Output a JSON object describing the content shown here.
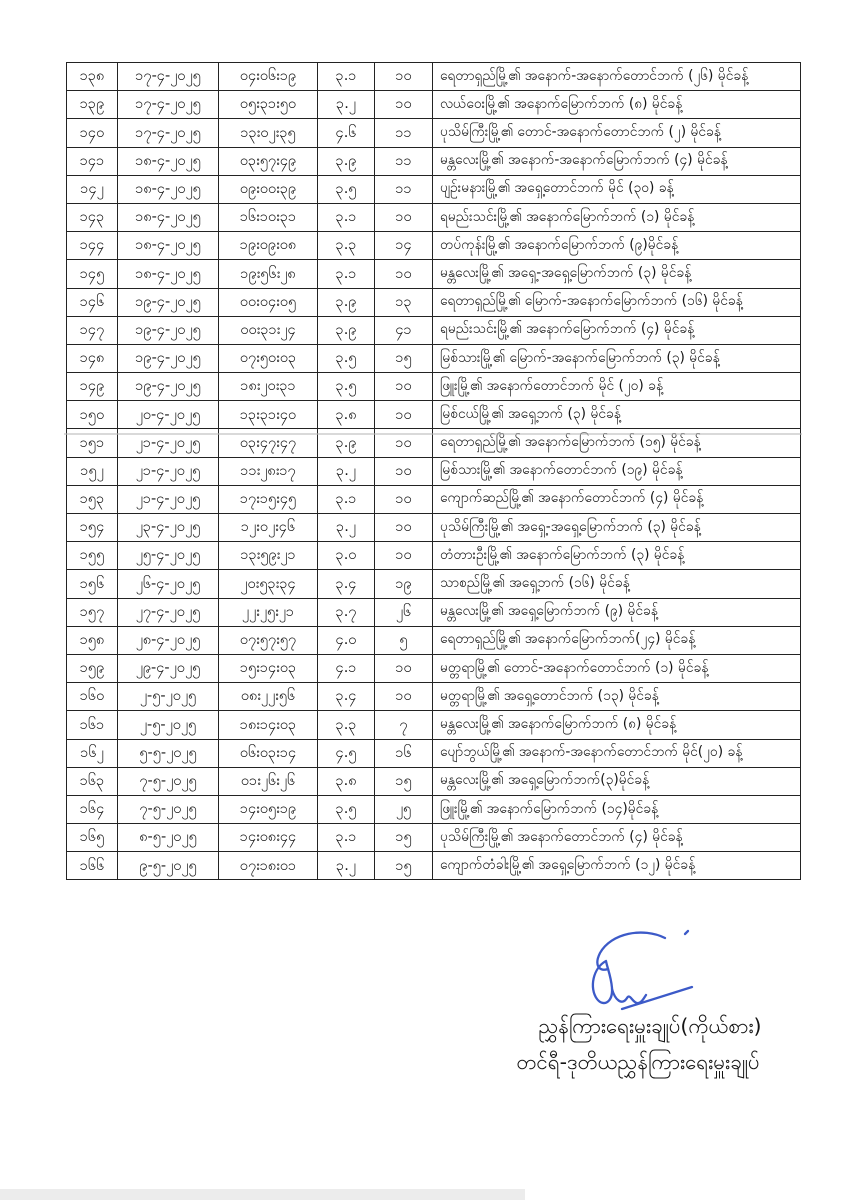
{
  "colors": {
    "page_background": "#ffffff",
    "text_ink": "#151515",
    "table_border": "#232323",
    "signature_ink": "#3c5ac8"
  },
  "table": {
    "rows": [
      {
        "no": "၁၃၈",
        "date": "၁၇-၄-၂၀၂၅",
        "time": "၀၄း၀၆း၁၉",
        "magnitude": "၃.၁",
        "depth": "၁၀",
        "location": "ရေတာရှည်မြို့၏ အနောက်-အနောက်တောင်ဘက် (၂၆) မိုင်ခန့်"
      },
      {
        "no": "၁၃၉",
        "date": "၁၇-၄-၂၀၂၅",
        "time": "၀၅း၃၁း၅၀",
        "magnitude": "၃.၂",
        "depth": "၁၀",
        "location": "လယ်ဝေးမြို့၏ အနောက်မြောက်ဘက် (၈) မိုင်ခန့်"
      },
      {
        "no": "၁၄၀",
        "date": "၁၇-၄-၂၀၂၅",
        "time": "၁၃း၀၂း၃၅",
        "magnitude": "၄.၆",
        "depth": "၁၁",
        "location": "ပုသိမ်ကြီးမြို့၏ တောင်-အနောက်တောင်ဘက် (၂) မိုင်ခန့်"
      },
      {
        "no": "၁၄၁",
        "date": "၁၈-၄-၂၀၂၅",
        "time": "၀၃း၅၇း၄၉",
        "magnitude": "၃.၉",
        "depth": "၁၁",
        "location": "မန္တလေးမြို့၏ အနောက်-အနောက်မြောက်ဘက် (၄) မိုင်ခန့်"
      },
      {
        "no": "၁၄၂",
        "date": "၁၈-၄-၂၀၂၅",
        "time": "၀၉း၀၀း၃၉",
        "magnitude": "၃.၅",
        "depth": "၁၁",
        "location": "ပျဉ်းမနားမြို့၏ အရှေ့တောင်ဘက် မိုင် (၃၀) ခန့်"
      },
      {
        "no": "၁၄၃",
        "date": "၁၈-၄-၂၀၂၅",
        "time": "၁၆း၁၀း၃၁",
        "magnitude": "၃.၁",
        "depth": "၁၀",
        "location": "ရမည်းသင်းမြို့၏ အနောက်မြောက်ဘက် (၁) မိုင်ခန့်"
      },
      {
        "no": "၁၄၄",
        "date": "၁၈-၄-၂၀၂၅",
        "time": "၁၉း၀၉း၀၈",
        "magnitude": "၃.၃",
        "depth": "၁၄",
        "location": "တပ်ကုန်းမြို့၏ အနောက်မြောက်ဘက် (၉)မိုင်ခန့်"
      },
      {
        "no": "၁၄၅",
        "date": "၁၈-၄-၂၀၂၅",
        "time": "၁၉း၅၆း၂၈",
        "magnitude": "၃.၁",
        "depth": "၁၀",
        "location": "မန္တလေးမြို့၏ အရှေ့-အရှေ့မြောက်ဘက် (၃) မိုင်ခန့်"
      },
      {
        "no": "၁၄၆",
        "date": "၁၉-၄-၂၀၂၅",
        "time": "၀၀း၀၄း၀၅",
        "magnitude": "၃.၉",
        "depth": "၁၃",
        "location": "ရေတာရှည်မြို့၏ မြောက်-အနောက်မြောက်ဘက် (၁၆) မိုင်ခန့်"
      },
      {
        "no": "၁၄၇",
        "date": "၁၉-၄-၂၀၂၅",
        "time": "၀၀း၃၁း၂၄",
        "magnitude": "၃.၉",
        "depth": "၄၁",
        "location": "ရမည်းသင်းမြို့၏ အနောက်မြောက်ဘက် (၄) မိုင်ခန့်"
      },
      {
        "no": "၁၄၈",
        "date": "၁၉-၄-၂၀၂၅",
        "time": "၀၇း၅၀း၀၃",
        "magnitude": "၃.၅",
        "depth": "၁၅",
        "location": "မြစ်သားမြို့၏ မြောက်-အနောက်မြောက်ဘက် (၃) မိုင်ခန့်"
      },
      {
        "no": "၁၄၉",
        "date": "၁၉-၄-၂၀၂၅",
        "time": "၁၈း၂၀း၃၁",
        "magnitude": "၃.၅",
        "depth": "၁၀",
        "location": "ဖြူးမြို့၏ အနောက်တောင်ဘက် မိုင် (၂၀) ခန့်"
      },
      {
        "no": "၁၅၀",
        "date": "၂၀-၄-၂၀၂၅",
        "time": "၁၃း၃၁း၄၀",
        "magnitude": "၃.၈",
        "depth": "၁၀",
        "location": "မြစ်ငယ်မြို့၏ အရှေ့ဘက် (၃) မိုင်ခန့်"
      },
      {
        "no": "၁၅၁",
        "date": "၂၁-၄-၂၀၂၅",
        "time": "၀၃း၄၇း၄၇",
        "magnitude": "၃.၉",
        "depth": "၁၀",
        "location": "ရေတာရှည်မြို့၏ အနောက်မြောက်ဘက် (၁၅) မိုင်ခန့်"
      },
      {
        "no": "၁၅၂",
        "date": "၂၁-၄-၂၀၂၅",
        "time": "၁၁း၂၈း၁၇",
        "magnitude": "၃.၂",
        "depth": "၁၀",
        "location": "မြစ်သားမြို့၏ အနောက်တောင်ဘက် (၁၉) မိုင်ခန့်"
      },
      {
        "no": "၁၅၃",
        "date": "၂၁-၄-၂၀၂၅",
        "time": "၁၇း၁၅း၄၅",
        "magnitude": "၃.၁",
        "depth": "၁၀",
        "location": "ကျောက်ဆည်မြို့၏ အနောက်တောင်ဘက် (၄) မိုင်ခန့်"
      },
      {
        "no": "၁၅၄",
        "date": "၂၃-၄-၂၀၂၅",
        "time": "၁၂း၀၂း၄၆",
        "magnitude": "၃.၂",
        "depth": "၁၀",
        "location": "ပုသိမ်ကြီးမြို့၏ အရှေ့-အရှေ့မြောက်ဘက် (၃) မိုင်ခန့်"
      },
      {
        "no": "၁၅၅",
        "date": "၂၅-၄-၂၀၂၅",
        "time": "၁၃း၅၉း၂၁",
        "magnitude": "၃.၀",
        "depth": "၁၀",
        "location": "တံတားဦးမြို့၏ အနောက်မြောက်ဘက် (၃) မိုင်ခန့်"
      },
      {
        "no": "၁၅၆",
        "date": "၂၆-၄-၂၀၂၅",
        "time": "၂၀း၅၃း၃၄",
        "magnitude": "၃.၄",
        "depth": "၁၉",
        "location": "သာစည်မြို့၏ အရှေ့ဘက် (၁၆) မိုင်ခန့်"
      },
      {
        "no": "၁၅၇",
        "date": "၂၇-၄-၂၀၂၅",
        "time": "၂၂း၂၅း၂၁",
        "magnitude": "၃.၇",
        "depth": "၂၆",
        "location": "မန္တလေးမြို့၏ အရှေ့မြောက်ဘက် (၉) မိုင်ခန့်"
      },
      {
        "no": "၁၅၈",
        "date": "၂၈-၄-၂၀၂၅",
        "time": "၀၇း၅၇း၅၇",
        "magnitude": "၄.၀",
        "depth": "၅",
        "location": "ရေတာရှည်မြို့၏ အနောက်မြောက်ဘက်(၂၄) မိုင်ခန့်"
      },
      {
        "no": "၁၅၉",
        "date": "၂၉-၄-၂၀၂၅",
        "time": "၁၅း၁၄း၀၃",
        "magnitude": "၄.၁",
        "depth": "၁၀",
        "location": "မတ္တရာမြို့၏ တောင်-အနောက်တောင်ဘက် (၁) မိုင်ခန့်"
      },
      {
        "no": "၁၆၀",
        "date": "၂-၅-၂၀၂၅",
        "time": "၀၈း၂၂း၅၆",
        "magnitude": "၃.၄",
        "depth": "၁၀",
        "location": "မတ္တရာမြို့၏ အရှေ့တောင်ဘက် (၁၃) မိုင်ခန့်"
      },
      {
        "no": "၁၆၁",
        "date": "၂-၅-၂၀၂၅",
        "time": "၁၈း၁၄း၀၃",
        "magnitude": "၃.၃",
        "depth": "၇",
        "location": "မန္တလေးမြို့၏ အနောက်မြောက်ဘက် (၈) မိုင်ခန့်"
      },
      {
        "no": "၁၆၂",
        "date": "၅-၅-၂၀၂၅",
        "time": "၀၆း၀၃း၁၄",
        "magnitude": "၄.၅",
        "depth": "၁၆",
        "location": "ပျော်ဘွယ်မြို့၏ အနောက်-အနောက်တောင်ဘက် မိုင်(၂၀) ခန့်"
      },
      {
        "no": "၁၆၃",
        "date": "၇-၅-၂၀၂၅",
        "time": "၀၁း၂၆း၂၆",
        "magnitude": "၃.၈",
        "depth": "၁၅",
        "location": "မန္တလေးမြို့၏ အရှေ့မြောက်ဘက်(၃)မိုင်ခန့်"
      },
      {
        "no": "၁၆၄",
        "date": "၇-၅-၂၀၂၅",
        "time": "၁၄း၀၅း၁၉",
        "magnitude": "၃.၅",
        "depth": "၂၅",
        "location": "ဖြူးမြို့၏ အနောက်မြောက်ဘက် (၁၄)မိုင်ခန့်"
      },
      {
        "no": "၁၆၅",
        "date": "၈-၅-၂၀၂၅",
        "time": "၁၄း၀၈း၄၄",
        "magnitude": "၃.၁",
        "depth": "၁၅",
        "location": "ပုသိမ်ကြီးမြို့၏ အနောက်တောင်ဘက် (၄) မိုင်ခန့်"
      },
      {
        "no": "၁၆၆",
        "date": "၉-၅-၂၀၂၅",
        "time": "၀၇း၁၈း၀၁",
        "magnitude": "၃.၂",
        "depth": "၁၅",
        "location": "ကျောက်တံခါးမြို့၏ အရှေ့မြောက်ဘက် (၁၂) မိုင်ခန့်"
      }
    ]
  },
  "signature": {
    "line1": "ညွှန်ကြားရေးမှူးချုပ်(ကိုယ်စား)",
    "line2": "တင်ရီ-ဒုတိယညွှန်ကြားရေးမှူးချုပ်"
  }
}
